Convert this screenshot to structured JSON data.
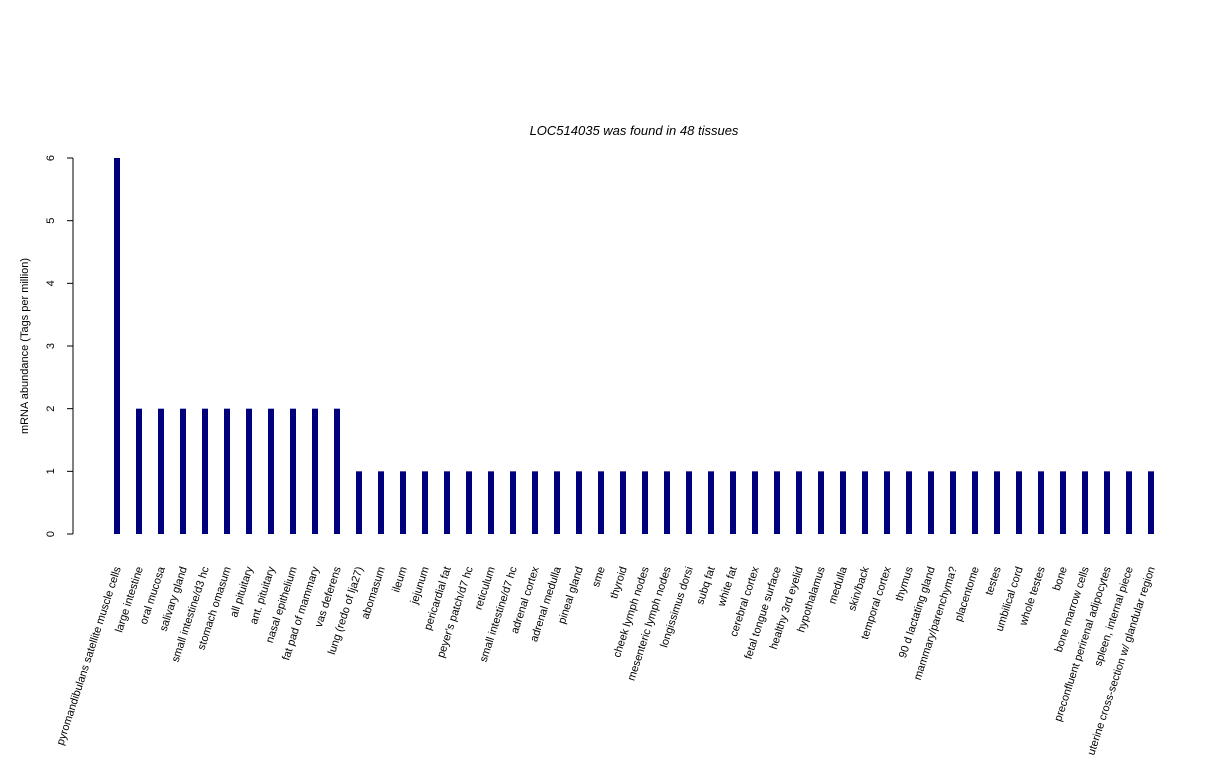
{
  "chart_data": {
    "type": "bar",
    "title": "LOC514035  was found in  48  tissues",
    "xlabel": "",
    "ylabel": "mRNA abundance (Tags per million)",
    "ylim": [
      0,
      6
    ],
    "yticks": [
      "0",
      "1",
      "2",
      "3",
      "4",
      "5",
      "6"
    ],
    "grid": false,
    "bar_color": "#00007f",
    "categories": [
      "pyromandibulans satellite muscle cells",
      "large intestine",
      "oral mucosa",
      "salivary gland",
      "small intestine/d3 hc",
      "stomach omasum",
      "all pituitary",
      "ant. pituitary",
      "nasal epithelium",
      "fat pad of mammary",
      "vas deferens",
      "lung (redo of lja27)",
      "abomasum",
      "ileum",
      "jejunum",
      "pericardial fat",
      "peyer's patch/d7 hc",
      "reticulum",
      "small intestine/d7 hc",
      "adrenal cortex",
      "adrenal medulla",
      "pineal gland",
      "sme",
      "thyroid",
      "cheek lymph nodes",
      "mesenteric lymph nodes",
      "longissimus dorsi",
      "subq fat",
      "white fat",
      "cerebral cortex",
      "fetal tongue surface",
      "healthy 3rd eyelid",
      "hypothalamus",
      "medulla",
      "skin/back",
      "temporal cortex",
      "thymus",
      "90 d lactating gland",
      "mammary/parenchyma?",
      "placentome",
      "testes",
      "umbilical cord",
      "whole testes",
      "bone",
      "bone marrow cells",
      "preconfluent perirenal adipocytes",
      "spleen, internal piece",
      "uterine cross-section w/ glandular region"
    ],
    "values": [
      6,
      2,
      2,
      2,
      2,
      2,
      2,
      2,
      2,
      2,
      2,
      1,
      1,
      1,
      1,
      1,
      1,
      1,
      1,
      1,
      1,
      1,
      1,
      1,
      1,
      1,
      1,
      1,
      1,
      1,
      1,
      1,
      1,
      1,
      1,
      1,
      1,
      1,
      1,
      1,
      1,
      1,
      1,
      1,
      1,
      1,
      1,
      1
    ]
  }
}
